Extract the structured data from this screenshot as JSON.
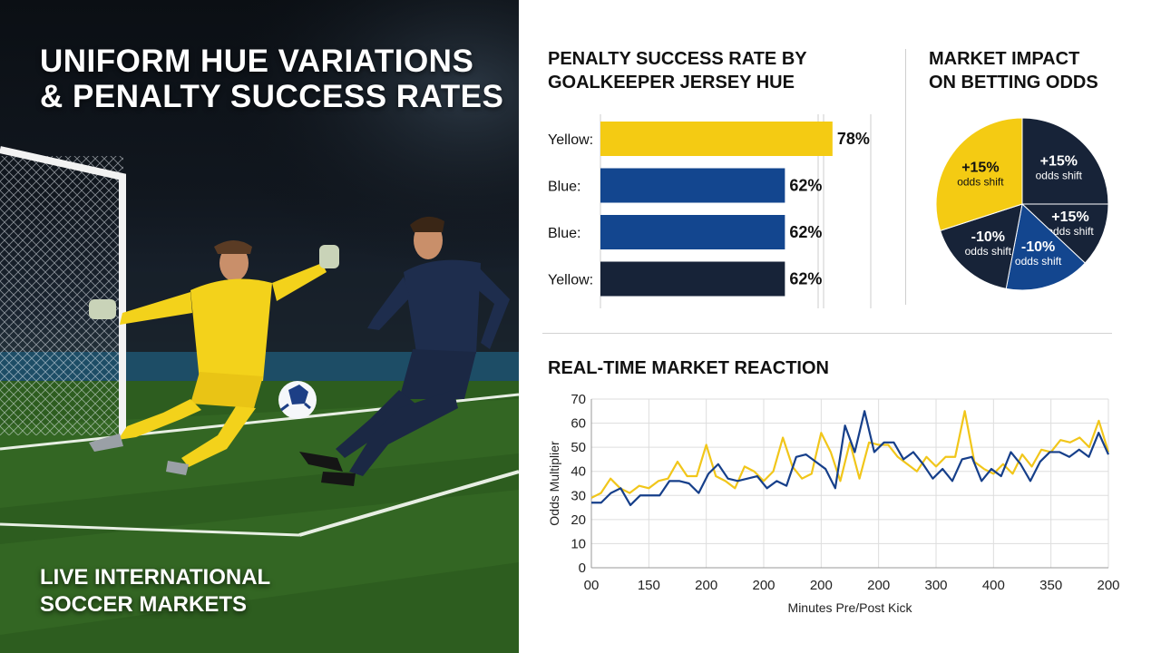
{
  "left_panel": {
    "title": "UNIFORM HUE VARIATIONS\n& PENALTY SUCCESS RATES",
    "footer": "LIVE INTERNATIONAL\nSOCCER MARKETS"
  },
  "colors": {
    "yellow": "#f4cb13",
    "blue": "#13468f",
    "navy": "#172338",
    "line_blue": "#163f8a",
    "line_yellow": "#f1c61a"
  },
  "chart_data": [
    {
      "type": "bar",
      "orientation": "horizontal",
      "title": "PENALTY SUCCESS RATE BY\nGOALKEEPER JERSEY HUE",
      "categories": [
        "Yellow:",
        "Blue:",
        "Blue:",
        "Yellow:"
      ],
      "values": [
        78,
        62,
        62,
        62
      ],
      "value_labels": [
        "78%",
        "62%",
        "62%",
        "62%"
      ],
      "bar_colors": [
        "#f4cb13",
        "#13468f",
        "#13468f",
        "#172338"
      ],
      "xlim": [
        0,
        100
      ],
      "grid": true
    },
    {
      "type": "pie",
      "title": "MARKET IMPACT\nON BETTING ODDS",
      "slices": [
        {
          "value": 25,
          "label": "+15%",
          "sublabel": "odds shift",
          "color": "#172338"
        },
        {
          "value": 12,
          "label": "+15%",
          "sublabel": "odds shift",
          "color": "#172338"
        },
        {
          "value": 16,
          "label": "-10%",
          "sublabel": "odds shift",
          "color": "#13468f"
        },
        {
          "value": 17,
          "label": "-10%",
          "sublabel": "odds shift",
          "color": "#172338"
        },
        {
          "value": 30,
          "label": "+15%",
          "sublabel": "odds shift",
          "color": "#f4cb13"
        }
      ]
    },
    {
      "type": "line",
      "title": "REAL-TIME MARKET REACTION",
      "xlabel": "Minutes Pre/Post Kick",
      "ylabel": "Odds Multiplier",
      "ylim": [
        0,
        70
      ],
      "yticks": [
        0,
        10,
        20,
        30,
        40,
        50,
        60,
        70
      ],
      "xtick_labels": [
        "00",
        "150",
        "200",
        "200",
        "200",
        "200",
        "300",
        "400",
        "350",
        "200"
      ],
      "grid": true,
      "series": [
        {
          "color": "#163f8a",
          "values": [
            27,
            27,
            31,
            33,
            26,
            30,
            30,
            30,
            36,
            36,
            35,
            31,
            39,
            43,
            37,
            36,
            37,
            38,
            33,
            36,
            34,
            46,
            47,
            44,
            41,
            33,
            59,
            48,
            65,
            48,
            52,
            52,
            45,
            48,
            43,
            37,
            41,
            36,
            45,
            46,
            36,
            41,
            38,
            48,
            43,
            36,
            44,
            48,
            48,
            46,
            49,
            46,
            56,
            47
          ]
        },
        {
          "color": "#f1c61a",
          "values": [
            29,
            31,
            37,
            33,
            31,
            34,
            33,
            36,
            37,
            44,
            38,
            38,
            51,
            38,
            36,
            33,
            42,
            40,
            36,
            40,
            54,
            42,
            37,
            39,
            56,
            48,
            36,
            52,
            37,
            52,
            51,
            51,
            46,
            43,
            40,
            46,
            42,
            46,
            46,
            65,
            44,
            41,
            39,
            43,
            39,
            47,
            42,
            49,
            48,
            53,
            52,
            54,
            50,
            61,
            48
          ]
        }
      ]
    }
  ]
}
